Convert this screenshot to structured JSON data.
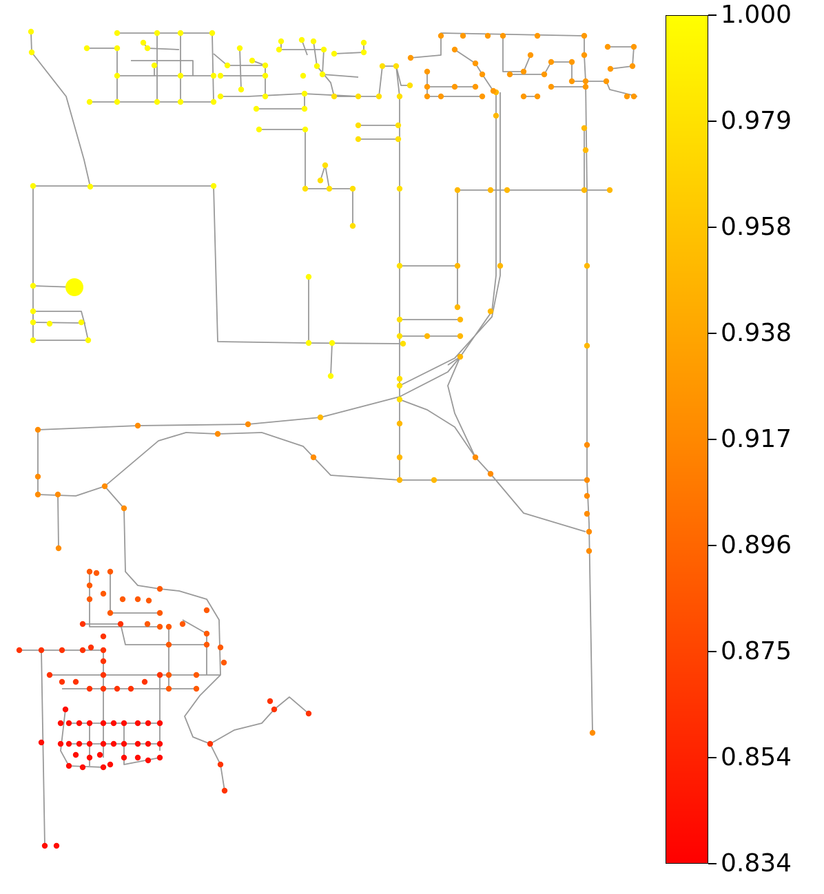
{
  "colorbar": {
    "min": 0.834,
    "max": 1.0,
    "colors": {
      "top": "#ffff00",
      "middle": "#ff8800",
      "bottom": "#ff0000"
    },
    "ticks": [
      "1.000",
      "0.979",
      "0.958",
      "0.938",
      "0.917",
      "0.896",
      "0.875",
      "0.854",
      "0.834"
    ]
  },
  "network": {
    "edge_color": "#999999",
    "source_node": {
      "value": 1.0,
      "color": "#ffff00"
    }
  }
}
